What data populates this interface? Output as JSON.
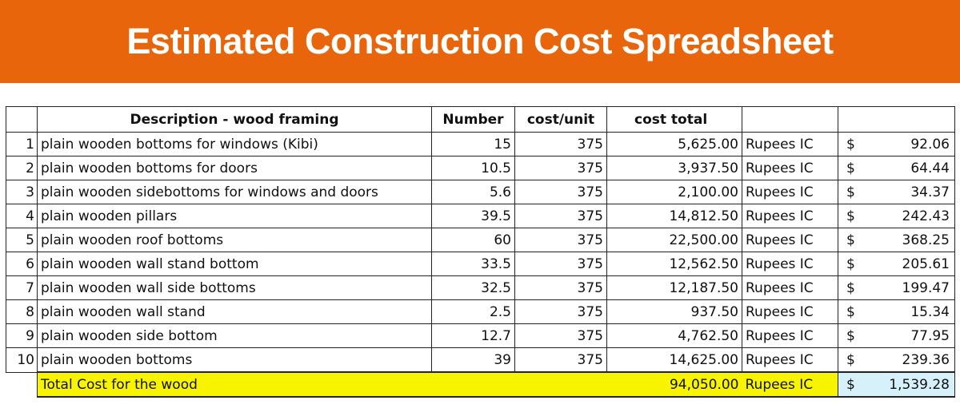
{
  "title": "Estimated Construction Cost Spreadsheet",
  "accent_color": "#e8650b",
  "headers": {
    "description": "Description - wood framing",
    "number": "Number",
    "cost_unit": "cost/unit",
    "cost_total": "cost total"
  },
  "rows": [
    {
      "no": "1",
      "description": "plain wooden bottoms for windows (Kibi)",
      "number": "15",
      "cost_unit": "375",
      "cost_total": "5,625.00",
      "currency": "Rupees IC",
      "dollar": "$",
      "usd": "92.06"
    },
    {
      "no": "2",
      "description": "plain wooden bottoms for doors",
      "number": "10.5",
      "cost_unit": "375",
      "cost_total": "3,937.50",
      "currency": "Rupees IC",
      "dollar": "$",
      "usd": "64.44"
    },
    {
      "no": "3",
      "description": "plain wooden sidebottoms for windows and doors",
      "number": "5.6",
      "cost_unit": "375",
      "cost_total": "2,100.00",
      "currency": "Rupees IC",
      "dollar": "$",
      "usd": "34.37"
    },
    {
      "no": "4",
      "description": "plain wooden pillars",
      "number": "39.5",
      "cost_unit": "375",
      "cost_total": "14,812.50",
      "currency": "Rupees IC",
      "dollar": "$",
      "usd": "242.43"
    },
    {
      "no": "5",
      "description": "plain wooden roof bottoms",
      "number": "60",
      "cost_unit": "375",
      "cost_total": "22,500.00",
      "currency": "Rupees IC",
      "dollar": "$",
      "usd": "368.25"
    },
    {
      "no": "6",
      "description": "plain wooden wall stand bottom",
      "number": "33.5",
      "cost_unit": "375",
      "cost_total": "12,562.50",
      "currency": "Rupees IC",
      "dollar": "$",
      "usd": "205.61"
    },
    {
      "no": "7",
      "description": "plain wooden wall side bottoms",
      "number": "32.5",
      "cost_unit": "375",
      "cost_total": "12,187.50",
      "currency": "Rupees IC",
      "dollar": "$",
      "usd": "199.47"
    },
    {
      "no": "8",
      "description": "plain wooden wall stand",
      "number": "2.5",
      "cost_unit": "375",
      "cost_total": "937.50",
      "currency": "Rupees IC",
      "dollar": "$",
      "usd": "15.34"
    },
    {
      "no": "9",
      "description": "plain wooden side bottom",
      "number": "12.7",
      "cost_unit": "375",
      "cost_total": "4,762.50",
      "currency": "Rupees IC",
      "dollar": "$",
      "usd": "77.95"
    },
    {
      "no": "10",
      "description": "plain wooden bottoms",
      "number": "39",
      "cost_unit": "375",
      "cost_total": "14,625.00",
      "currency": "Rupees IC",
      "dollar": "$",
      "usd": "239.36"
    }
  ],
  "total": {
    "label": "Total Cost for the wood",
    "cost_total": "94,050.00",
    "currency": "Rupees IC",
    "dollar": "$",
    "usd": "1,539.28",
    "highlight_color": "#f8f400",
    "usd_highlight_color": "#d6f1f9"
  }
}
